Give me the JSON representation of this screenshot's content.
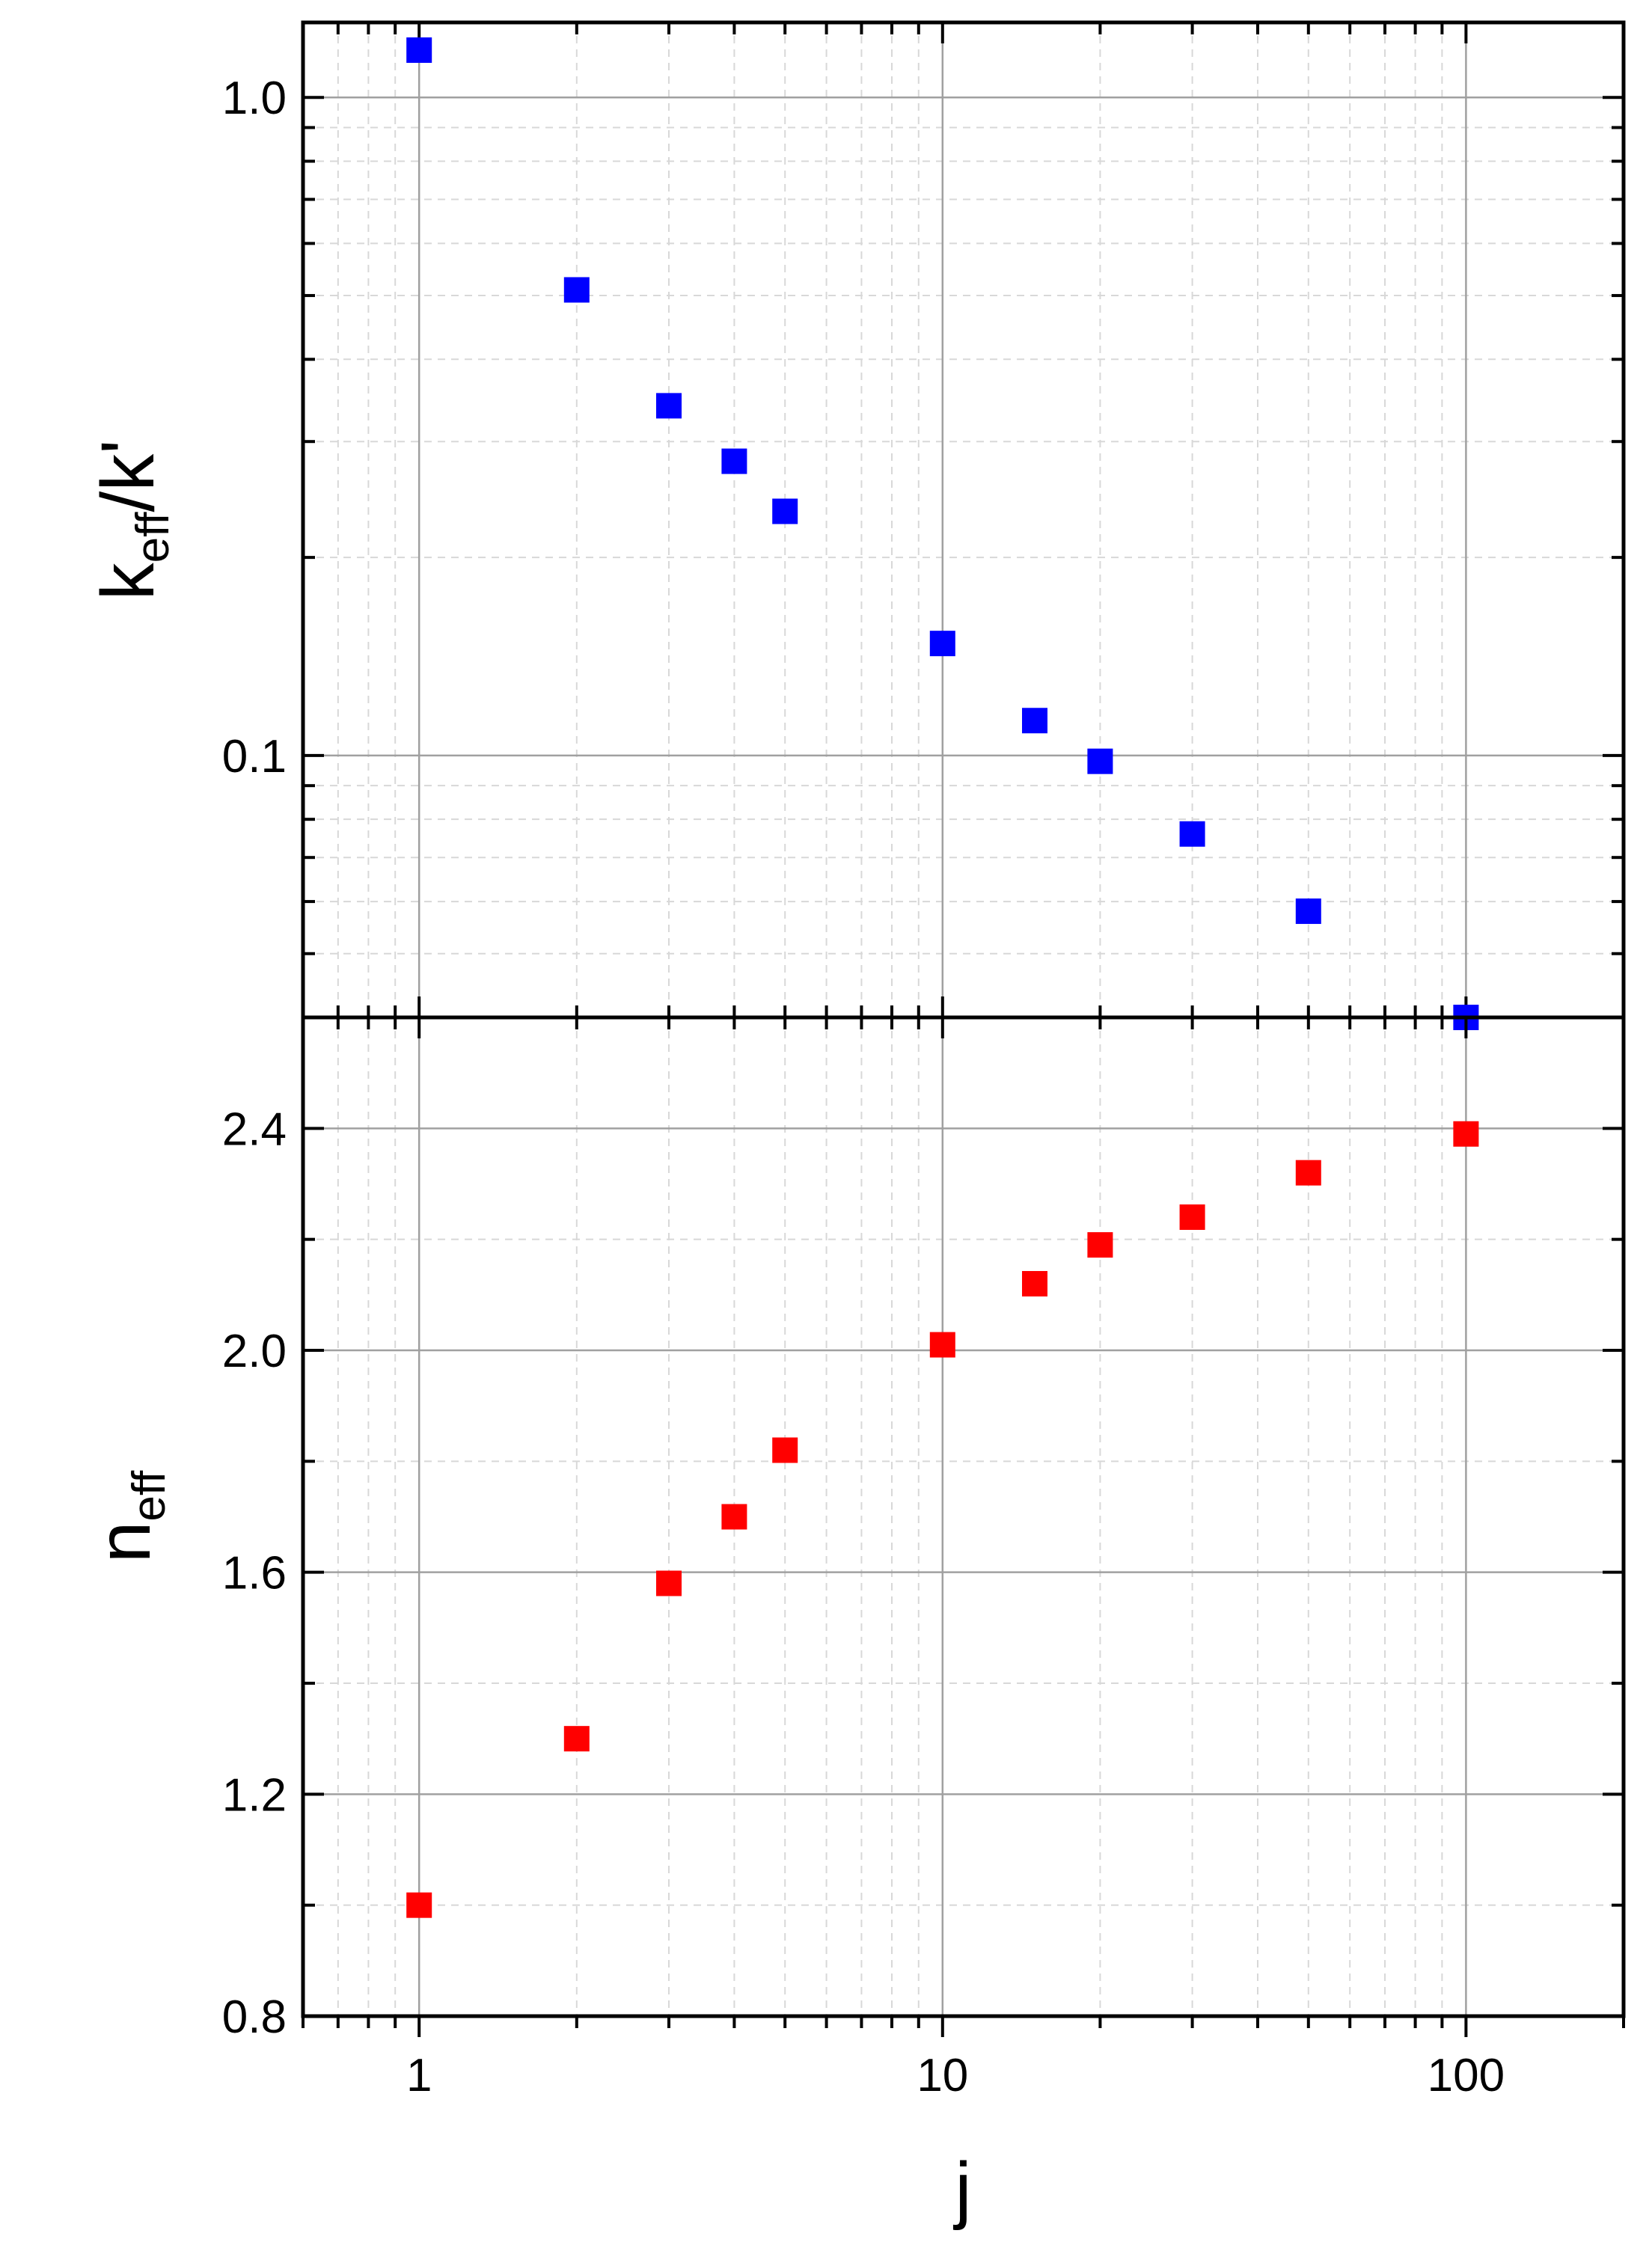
{
  "colors": {
    "top_series": "#0000ff",
    "bottom_series": "#ff0000",
    "axis": "#000000",
    "major_grid": "#a0a0a0",
    "minor_grid": "#d8d8d8"
  },
  "chart_data": [
    {
      "type": "scatter",
      "panel": "top",
      "xscale": "log",
      "yscale": "log",
      "xlim": [
        0.6,
        200
      ],
      "ylim": [
        0.04,
        1.3
      ],
      "grid": true,
      "ylabel_main": "k",
      "ylabel_sub": "eff",
      "ylabel_tail": "/k'",
      "yticks": [
        {
          "value": 0.1,
          "label": "0.1"
        },
        {
          "value": 1.0,
          "label": "1.0"
        }
      ],
      "x": [
        1,
        2,
        3,
        4,
        5,
        10,
        15,
        20,
        30,
        50,
        100
      ],
      "y": [
        1.18,
        0.51,
        0.34,
        0.28,
        0.235,
        0.148,
        0.113,
        0.098,
        0.076,
        0.058,
        0.04
      ]
    },
    {
      "type": "scatter",
      "panel": "bottom",
      "xscale": "log",
      "yscale": "linear",
      "xlim": [
        0.6,
        200
      ],
      "ylim": [
        0.8,
        2.6
      ],
      "grid": true,
      "xlabel": "j",
      "ylabel_main": "n",
      "ylabel_sub": "eff",
      "xticks": [
        {
          "value": 1,
          "label": "1"
        },
        {
          "value": 10,
          "label": "10"
        },
        {
          "value": 100,
          "label": "100"
        }
      ],
      "yticks": [
        {
          "value": 0.8,
          "label": "0.8"
        },
        {
          "value": 1.2,
          "label": "1.2"
        },
        {
          "value": 1.6,
          "label": "1.6"
        },
        {
          "value": 2.0,
          "label": "2.0"
        },
        {
          "value": 2.4,
          "label": "2.4"
        }
      ],
      "x": [
        1,
        2,
        3,
        4,
        5,
        10,
        15,
        20,
        30,
        50,
        100
      ],
      "y": [
        1.0,
        1.3,
        1.58,
        1.7,
        1.82,
        2.01,
        2.12,
        2.19,
        2.24,
        2.32,
        2.39
      ]
    }
  ]
}
